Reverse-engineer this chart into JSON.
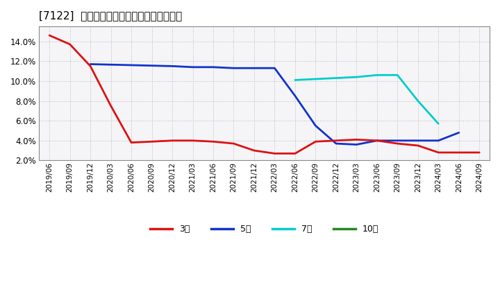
{
  "title": "[7122]  経常利益マージンの標準偏差の推移",
  "title_fontsize": 11,
  "background_color": "#ffffff",
  "plot_background_color": "#f5f5f8",
  "grid_color": "#aaaaaa",
  "ylim": [
    0.02,
    0.155
  ],
  "yticks": [
    0.02,
    0.04,
    0.06,
    0.08,
    0.1,
    0.12,
    0.14
  ],
  "x_labels": [
    "2019/06",
    "2019/09",
    "2019/12",
    "2020/03",
    "2020/06",
    "2020/09",
    "2020/12",
    "2021/03",
    "2021/06",
    "2021/09",
    "2021/12",
    "2022/03",
    "2022/06",
    "2022/09",
    "2022/12",
    "2023/03",
    "2023/06",
    "2023/09",
    "2023/12",
    "2024/03",
    "2024/06",
    "2024/09"
  ],
  "series_3y_x": [
    0,
    1,
    2,
    3,
    4,
    5,
    6,
    7,
    8,
    9,
    10,
    11,
    12,
    13,
    14,
    15,
    16,
    17,
    18,
    19,
    20,
    21
  ],
  "series_3y": [
    0.146,
    0.137,
    0.115,
    0.075,
    0.038,
    0.039,
    0.04,
    0.04,
    0.039,
    0.037,
    0.03,
    0.027,
    0.027,
    0.039,
    0.04,
    0.041,
    0.04,
    0.037,
    0.035,
    0.028,
    0.028,
    0.028
  ],
  "series_5y_x": [
    2,
    3,
    4,
    5,
    6,
    7,
    8,
    9,
    10,
    11,
    12,
    13,
    14,
    15,
    16,
    17,
    18,
    19,
    20
  ],
  "series_5y": [
    0.117,
    0.1165,
    0.116,
    0.1155,
    0.115,
    0.114,
    0.114,
    0.113,
    0.113,
    0.113,
    0.085,
    0.055,
    0.037,
    0.036,
    0.04,
    0.04,
    0.04,
    0.04,
    0.048
  ],
  "series_7y_x": [
    12,
    13,
    14,
    15,
    16,
    17,
    18,
    19
  ],
  "series_7y": [
    0.101,
    0.102,
    0.103,
    0.104,
    0.106,
    0.106,
    0.08,
    0.057
  ],
  "series_10y_x": [],
  "series_10y": [],
  "legend_labels": [
    "3年",
    "5年",
    "7年",
    "10年"
  ],
  "legend_colors": [
    "#dd1111",
    "#1133cc",
    "#00cccc",
    "#228822"
  ],
  "line_color_3y": "#dd1111",
  "line_color_5y": "#1133cc",
  "line_color_7y": "#00cccc",
  "line_color_10y": "#228822"
}
